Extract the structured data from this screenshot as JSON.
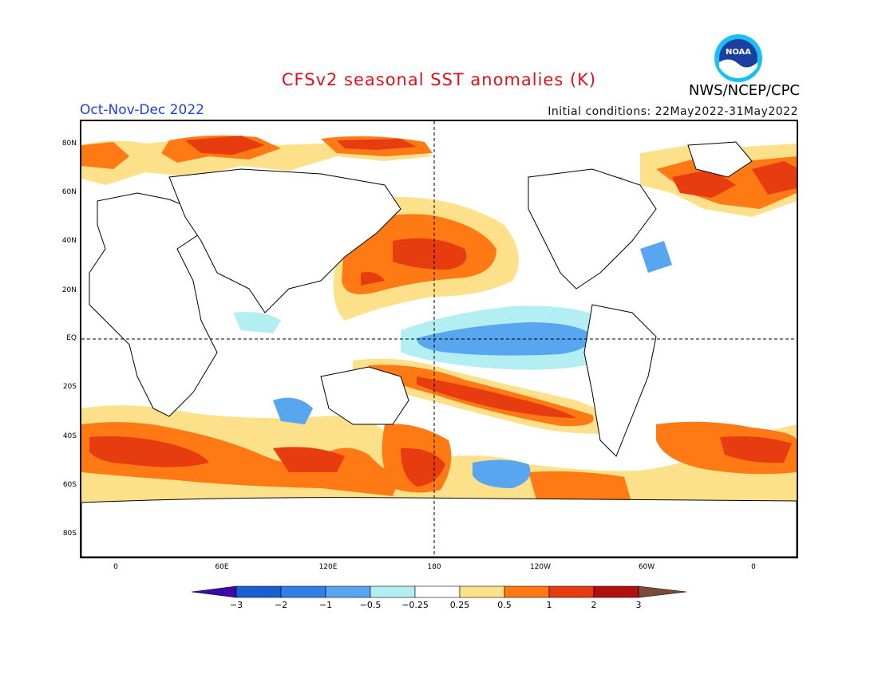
{
  "header": {
    "title": "CFSv2 seasonal SST anomalies (K)",
    "period": "Oct-Nov-Dec 2022",
    "initial_conditions": "Initial conditions: 22May2022-31May2022",
    "agency": "NWS/NCEP/CPC",
    "logo_text": "NOAA"
  },
  "axes": {
    "lat_labels": [
      "80N",
      "60N",
      "40N",
      "20N",
      "EQ",
      "20S",
      "40S",
      "60S",
      "80S"
    ],
    "lon_labels": [
      "0",
      "60E",
      "120E",
      "180",
      "120W",
      "60W",
      "0"
    ]
  },
  "colorbar": {
    "labels": [
      "−3",
      "−2",
      "−1",
      "−0.5",
      "−0.25",
      "0.25",
      "0.5",
      "1",
      "2",
      "3"
    ],
    "colors": [
      "#3b0aa8",
      "#1a5fd1",
      "#2f7fe6",
      "#58a6ef",
      "#b3eef2",
      "#ffffff",
      "#fde08a",
      "#ff7a14",
      "#e63c10",
      "#b0100e",
      "#7a4a3a"
    ]
  },
  "colors": {
    "title": "#e0101a",
    "period": "#1f3fe0",
    "anom_05_1": "#fde08a",
    "anom_1_2": "#ff7a14",
    "anom_2_3": "#e63c10",
    "anom_gt3": "#b0100e",
    "anom_neg_025_05": "#b3eef2",
    "anom_neg_05_1": "#58a6ef",
    "anom_neg_1_2": "#2f7fe6"
  }
}
